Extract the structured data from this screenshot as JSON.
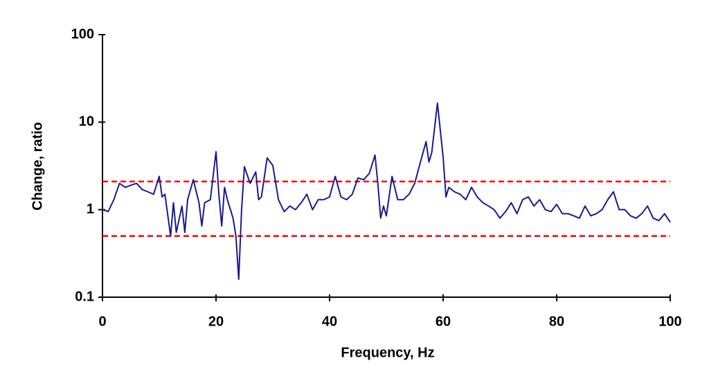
{
  "chart_data": {
    "type": "line",
    "x_label": "Frequency, Hz",
    "y_label": "Change, ratio",
    "xlim": [
      0,
      100
    ],
    "xticks": [
      0,
      20,
      40,
      60,
      80,
      100
    ],
    "ylim": [
      0.1,
      100
    ],
    "yticks": [
      0.1,
      1,
      10,
      100
    ],
    "y_log_scale": true,
    "reference_lines": [
      {
        "value": 2.1,
        "color": "#ff0000"
      },
      {
        "value": 0.5,
        "color": "#ff0000"
      }
    ],
    "series": [
      {
        "color": "#1a1a8c",
        "x": [
          0,
          1,
          2,
          3,
          4,
          5,
          6,
          7,
          8,
          9,
          10,
          10.5,
          11,
          12,
          12.5,
          13,
          14,
          14.5,
          15,
          16,
          17,
          17.5,
          18,
          19,
          20,
          20.5,
          21,
          21.5,
          22,
          23,
          23.5,
          24,
          24.5,
          25,
          26,
          27,
          27.5,
          28,
          29,
          30,
          31,
          32,
          33,
          34,
          35,
          36,
          37,
          38,
          39,
          40,
          41,
          42,
          43,
          44,
          45,
          46,
          47,
          48,
          48.5,
          49,
          49.5,
          50,
          51,
          52,
          53,
          54,
          55,
          56,
          57,
          57.5,
          58,
          59,
          60,
          60.5,
          61,
          62,
          63,
          64,
          65,
          66,
          67,
          68,
          69,
          70,
          71,
          72,
          73,
          74,
          75,
          76,
          77,
          78,
          79,
          80,
          81,
          82,
          83,
          84,
          85,
          86,
          87,
          88,
          89,
          90,
          91,
          92,
          93,
          94,
          95,
          96,
          97,
          98,
          99,
          100
        ],
        "values": [
          1.0,
          0.95,
          1.3,
          2.0,
          1.8,
          1.9,
          2.0,
          1.7,
          1.6,
          1.5,
          2.4,
          1.4,
          1.5,
          0.5,
          1.2,
          0.55,
          1.1,
          0.55,
          1.3,
          2.2,
          1.2,
          0.65,
          1.2,
          1.3,
          4.6,
          1.5,
          0.65,
          1.8,
          1.3,
          0.8,
          0.5,
          0.16,
          1.0,
          3.1,
          2.0,
          2.7,
          1.3,
          1.4,
          3.9,
          3.2,
          1.3,
          0.95,
          1.1,
          1.0,
          1.2,
          1.5,
          1.0,
          1.3,
          1.3,
          1.4,
          2.4,
          1.4,
          1.3,
          1.5,
          2.3,
          2.2,
          2.6,
          4.2,
          2.0,
          0.8,
          1.1,
          0.85,
          2.4,
          1.3,
          1.3,
          1.5,
          2.0,
          3.5,
          6.0,
          3.5,
          4.5,
          16.5,
          4.0,
          1.4,
          1.8,
          1.6,
          1.5,
          1.3,
          1.8,
          1.4,
          1.2,
          1.1,
          1.0,
          0.8,
          0.95,
          1.2,
          0.9,
          1.3,
          1.4,
          1.1,
          1.3,
          1.0,
          0.95,
          1.15,
          0.9,
          0.9,
          0.85,
          0.8,
          1.1,
          0.85,
          0.9,
          1.0,
          1.3,
          1.6,
          1.0,
          1.0,
          0.85,
          0.8,
          0.9,
          1.1,
          0.8,
          0.75,
          0.9,
          0.72
        ]
      }
    ]
  }
}
